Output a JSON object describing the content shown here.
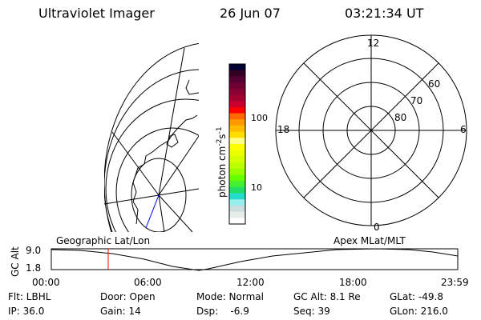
{
  "header": {
    "title": "Ultraviolet Imager",
    "date": "26 Jun 07",
    "time": "03:21:34 UT"
  },
  "colorbar": {
    "label": "photon cm",
    "label_exp1": "-2",
    "label_s": "s",
    "label_exp2": "-1",
    "ticks": [
      "100",
      "10"
    ],
    "colors": [
      "#000033",
      "#330022",
      "#550033",
      "#6e0033",
      "#880033",
      "#a30033",
      "#c80030",
      "#ff0000",
      "#ff6a00",
      "#ff9900",
      "#ffbb00",
      "#ffdd00",
      "#ffff88",
      "#ffff00",
      "#eaff00",
      "#d4ff00",
      "#bbff00",
      "#99ff00",
      "#66ff00",
      "#44ee33",
      "#22dd66",
      "#22ddcc",
      "#99eeee",
      "#ccdddd",
      "#e4eee6",
      "#ffffff"
    ]
  },
  "polar": {
    "labels_mlt": [
      "12",
      "6",
      "0",
      "18"
    ],
    "labels_lat": [
      "60",
      "70",
      "80"
    ]
  },
  "altitude_plot": {
    "left_label": "Geographic Lat/Lon",
    "right_label": "Apex MLat/MLT",
    "ylabel": "GC Alt",
    "yticks": [
      "9.0",
      "1.8"
    ],
    "xticks": [
      "00:00",
      "06:00",
      "12:00",
      "18:00",
      "23:59"
    ],
    "marker_color": "#ff0000",
    "current_time_fraction": 0.14
  },
  "status": [
    [
      "Flt: LBHL",
      "IP: 36.0"
    ],
    [
      "Door: Open",
      "Gain: 14"
    ],
    [
      "Mode: Normal",
      "Dsp:    -6.9"
    ],
    [
      "GC Alt: 8.1 Re",
      "Seq: 39"
    ],
    [
      "GLat: -49.8",
      "GLon: 216.0"
    ]
  ]
}
